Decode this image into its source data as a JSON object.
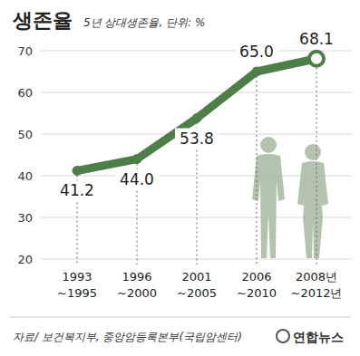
{
  "chart_data": {
    "type": "line",
    "title": "생존율",
    "subtitle": "5년 상대생존율, 단위: %",
    "categories": [
      "1993\n~1995",
      "1996\n~2000",
      "2001\n~2005",
      "2006\n~2010",
      "2008년\n~2012년"
    ],
    "values": [
      41.2,
      44.0,
      53.8,
      65.0,
      68.1
    ],
    "value_labels": [
      "41.2",
      "44.0",
      "53.8",
      "65.0",
      "68.1"
    ],
    "color": "#4f7f49",
    "marker": "circle",
    "data_labels": true,
    "grid": true,
    "ylim": [
      20,
      70
    ],
    "yticks": [
      20,
      30,
      40,
      50,
      60,
      70
    ],
    "source": "자료/ 보건복지부, 중앙암등록본부(국립암센터)",
    "credit": "연합뉴스"
  }
}
